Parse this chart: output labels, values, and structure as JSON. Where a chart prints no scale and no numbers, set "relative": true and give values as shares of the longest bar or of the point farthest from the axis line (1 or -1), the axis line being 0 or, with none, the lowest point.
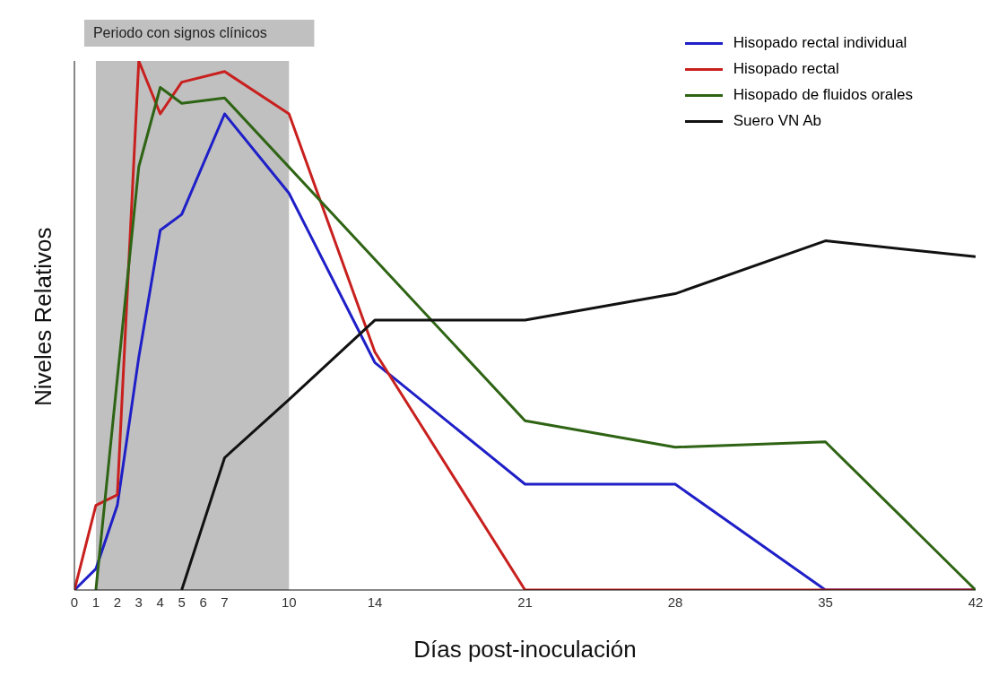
{
  "chart_data": {
    "type": "line",
    "xlabel": "Días post-inoculación",
    "ylabel": "Niveles Relativos",
    "relative": true,
    "xlim": [
      0,
      42
    ],
    "xticks": [
      0,
      1,
      2,
      3,
      4,
      5,
      6,
      7,
      10,
      14,
      21,
      28,
      35,
      42
    ],
    "legend": "top right",
    "marker": "none",
    "line_style": "solid",
    "bands": [
      {
        "axis": "x",
        "from": 1,
        "to": 10,
        "label": "Periodo con signos clínicos",
        "color": "#c0c0c0"
      }
    ],
    "series": [
      {
        "name": "Hisopado rectal individual",
        "color": "#1f1fc8",
        "x": [
          0,
          1,
          2,
          3,
          4,
          5,
          7,
          10,
          14,
          21,
          28,
          35,
          42
        ],
        "values": [
          0,
          0.04,
          0.16,
          0.44,
          0.68,
          0.71,
          0.9,
          0.75,
          0.43,
          0.2,
          0.2,
          0,
          0
        ]
      },
      {
        "name": "Hisopado rectal",
        "color": "#c8201e",
        "x": [
          0,
          1,
          2,
          3,
          4,
          5,
          7,
          10,
          14,
          21,
          28,
          35,
          42
        ],
        "values": [
          0,
          0.16,
          0.18,
          1,
          0.9,
          0.96,
          0.98,
          0.9,
          0.45,
          0,
          0,
          0,
          0
        ]
      },
      {
        "name": "Hisopado de fluidos orales",
        "color": "#2e6414",
        "x": [
          1,
          3,
          4,
          5,
          7,
          21,
          28,
          35,
          42
        ],
        "values": [
          0,
          0.8,
          0.95,
          0.92,
          0.93,
          0.32,
          0.27,
          0.28,
          0
        ]
      },
      {
        "name": "Suero VN Ab",
        "color": "#111111",
        "x": [
          5,
          7,
          10,
          14,
          21,
          28,
          35,
          42
        ],
        "values": [
          0,
          0.25,
          0.36,
          0.51,
          0.51,
          0.56,
          0.66,
          0.63
        ]
      }
    ]
  }
}
